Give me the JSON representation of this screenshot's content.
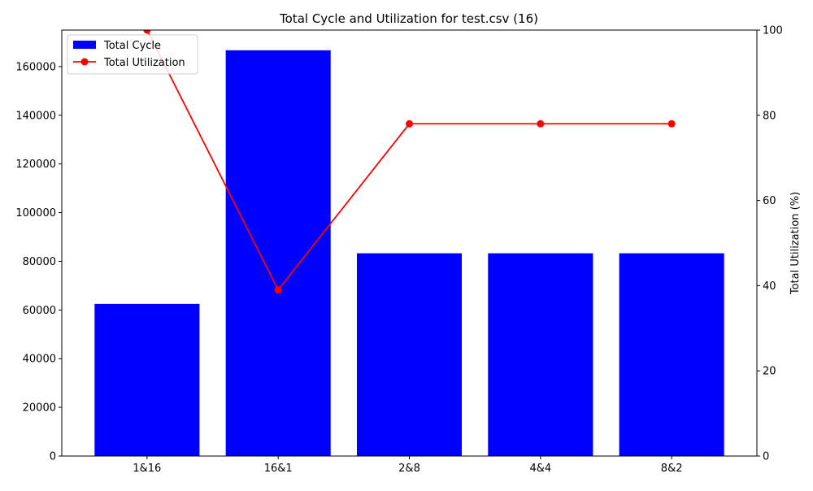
{
  "chart_data": {
    "type": "bar",
    "title": "Total Cycle and Utilization for test.csv (16)",
    "xlabel": "",
    "ylabel_left": "",
    "ylabel_right": "Total Utilization (%)",
    "categories": [
      "1&16",
      "16&1",
      "2&8",
      "4&4",
      "8&2"
    ],
    "series": [
      {
        "name": "Total Cycle",
        "type": "bar",
        "axis": "left",
        "color": "#0000ff",
        "values": [
          62500,
          166700,
          83300,
          83300,
          83300
        ]
      },
      {
        "name": "Total Utilization",
        "type": "line",
        "axis": "right",
        "color": "#ff0000",
        "values": [
          100,
          39,
          78,
          78,
          78
        ]
      }
    ],
    "ylim_left": [
      0,
      175000
    ],
    "ylim_right": [
      0,
      100
    ],
    "yticks_left": [
      0,
      20000,
      40000,
      60000,
      80000,
      100000,
      120000,
      140000,
      160000
    ],
    "yticks_right": [
      0,
      20,
      40,
      60,
      80,
      100
    ],
    "legend_placement": "top-left",
    "grid": false
  }
}
